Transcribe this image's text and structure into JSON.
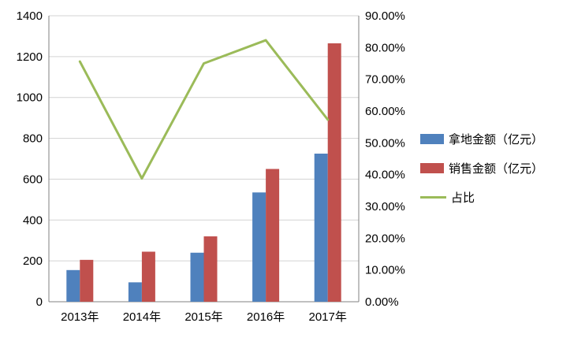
{
  "chart_data": {
    "type": "combo-bar-line",
    "title": "",
    "categories": [
      "2013年",
      "2014年",
      "2015年",
      "2016年",
      "2017年"
    ],
    "series": [
      {
        "name": "拿地金额（亿元）",
        "type": "bar",
        "axis": "left",
        "color": "#4F81BD",
        "values": [
          155,
          95,
          240,
          535,
          725
        ]
      },
      {
        "name": "销售金额（亿元）",
        "type": "bar",
        "axis": "left",
        "color": "#C0504D",
        "values": [
          205,
          245,
          320,
          650,
          1265
        ]
      },
      {
        "name": "占比",
        "type": "line",
        "axis": "right",
        "color": "#9BBB59",
        "values": [
          75.6,
          38.8,
          75.0,
          82.3,
          57.3
        ]
      }
    ],
    "left_axis": {
      "min": 0,
      "max": 1400,
      "step": 200,
      "labels": [
        "0",
        "200",
        "400",
        "600",
        "800",
        "1000",
        "1200",
        "1400"
      ]
    },
    "right_axis": {
      "min": 0,
      "max": 90,
      "step": 10,
      "labels": [
        "0.00%",
        "10.00%",
        "20.00%",
        "30.00%",
        "40.00%",
        "50.00%",
        "60.00%",
        "70.00%",
        "80.00%",
        "90.00%"
      ]
    },
    "grid": true,
    "legend_position": "right"
  }
}
